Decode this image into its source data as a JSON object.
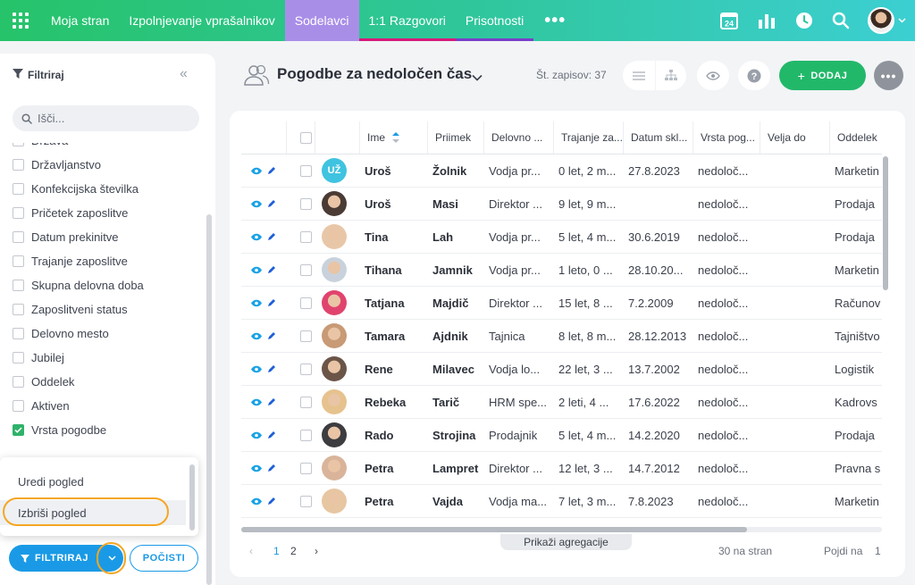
{
  "nav": {
    "items": [
      {
        "label": "Moja stran",
        "underline": ""
      },
      {
        "label": "Izpolnjevanje vprašalnikov",
        "underline": ""
      },
      {
        "label": "Sodelavci",
        "underline": "#a98ee8"
      },
      {
        "label": "1:1 Razgovori",
        "underline": "#d6197a"
      },
      {
        "label": "Prisotnosti",
        "underline": "#7a3fc9"
      }
    ],
    "active_index": 2,
    "more": "•••",
    "calendar_day": "24"
  },
  "sidebar": {
    "title": "Filtriraj",
    "search_placeholder": "Išči...",
    "filters": [
      {
        "label": "Država",
        "checked": false
      },
      {
        "label": "Državljanstvo",
        "checked": false
      },
      {
        "label": "Konfekcijska številka",
        "checked": false
      },
      {
        "label": "Pričetek zaposlitve",
        "checked": false
      },
      {
        "label": "Datum prekinitve",
        "checked": false
      },
      {
        "label": "Trajanje zaposlitve",
        "checked": false
      },
      {
        "label": "Skupna delovna doba",
        "checked": false
      },
      {
        "label": "Zaposlitveni status",
        "checked": false
      },
      {
        "label": "Delovno mesto",
        "checked": false
      },
      {
        "label": "Jubilej",
        "checked": false
      },
      {
        "label": "Oddelek",
        "checked": false
      },
      {
        "label": "Aktiven",
        "checked": false
      },
      {
        "label": "Vrsta pogodbe",
        "checked": true
      }
    ],
    "dropdown": {
      "edit": "Uredi pogled",
      "delete": "Izbriši pogled"
    },
    "filter_button": "FILTRIRAJ",
    "clear_button": "POČISTI"
  },
  "header": {
    "title": "Pogodbe za nedoločen čas",
    "records": "Št. zapisov: 37",
    "add_button": "DODAJ"
  },
  "table": {
    "columns": [
      "Ime",
      "Priimek",
      "Delovno ...",
      "Trajanje za...",
      "Datum skl...",
      "Vrsta pog...",
      "Velja do",
      "Oddelek"
    ],
    "rows": [
      {
        "initials": "UŽ",
        "ime": "Uroš",
        "priimek": "Žolnik",
        "delovno": "Vodja pr...",
        "trajanje": "0 let, 2 m...",
        "datum": "27.8.2023",
        "vrsta": "nedoloč...",
        "velja": "",
        "oddelek": "Marketin"
      },
      {
        "initials": "",
        "ime": "Uroš",
        "priimek": "Masi",
        "delovno": "Direktor ...",
        "trajanje": "9 let, 9 m...",
        "datum": "",
        "vrsta": "nedoloč...",
        "velja": "",
        "oddelek": "Prodaja"
      },
      {
        "initials": "",
        "ime": "Tina",
        "priimek": "Lah",
        "delovno": "Vodja pr...",
        "trajanje": "5 let, 4 m...",
        "datum": "30.6.2019",
        "vrsta": "nedoloč...",
        "velja": "",
        "oddelek": "Prodaja"
      },
      {
        "initials": "",
        "ime": "Tihana",
        "priimek": "Jamnik",
        "delovno": "Vodja pr...",
        "trajanje": "1 leto, 0 ...",
        "datum": "28.10.20...",
        "vrsta": "nedoloč...",
        "velja": "",
        "oddelek": "Marketin"
      },
      {
        "initials": "",
        "ime": "Tatjana",
        "priimek": "Majdič",
        "delovno": "Direktor ...",
        "trajanje": "15 let, 8 ...",
        "datum": "7.2.2009",
        "vrsta": "nedoloč...",
        "velja": "",
        "oddelek": "Računov"
      },
      {
        "initials": "",
        "ime": "Tamara",
        "priimek": "Ajdnik",
        "delovno": "Tajnica",
        "trajanje": "8 let, 8 m...",
        "datum": "28.12.2013",
        "vrsta": "nedoloč...",
        "velja": "",
        "oddelek": "Tajništvo"
      },
      {
        "initials": "",
        "ime": "Rene",
        "priimek": "Milavec",
        "delovno": "Vodja lo...",
        "trajanje": "22 let, 3 ...",
        "datum": "13.7.2002",
        "vrsta": "nedoloč...",
        "velja": "",
        "oddelek": "Logistik"
      },
      {
        "initials": "",
        "ime": "Rebeka",
        "priimek": "Tarič",
        "delovno": "HRM spe...",
        "trajanje": "2 leti, 4 ...",
        "datum": "17.6.2022",
        "vrsta": "nedoloč...",
        "velja": "",
        "oddelek": "Kadrovs"
      },
      {
        "initials": "",
        "ime": "Rado",
        "priimek": "Strojina",
        "delovno": "Prodajnik",
        "trajanje": "5 let, 4 m...",
        "datum": "14.2.2020",
        "vrsta": "nedoloč...",
        "velja": "",
        "oddelek": "Prodaja"
      },
      {
        "initials": "",
        "ime": "Petra",
        "priimek": "Lampret",
        "delovno": "Direktor ...",
        "trajanje": "12 let, 3 ...",
        "datum": "14.7.2012",
        "vrsta": "nedoloč...",
        "velja": "",
        "oddelek": "Pravna s"
      },
      {
        "initials": "",
        "ime": "Petra",
        "priimek": "Vajda",
        "delovno": "Vodja ma...",
        "trajanje": "7 let, 3 m...",
        "datum": "7.8.2023",
        "vrsta": "nedoloč...",
        "velja": "",
        "oddelek": "Marketin"
      }
    ]
  },
  "footer": {
    "aggregation": "Prikaži agregacije",
    "pages": [
      "1",
      "2"
    ],
    "per_page": "30 na stran",
    "go_to_label": "Pojdi na",
    "go_to_value": "1"
  },
  "colors": {
    "primary": "#1a9ae6",
    "add": "#22b86a",
    "active_tab": "#a98ee8",
    "highlight_ring": "#f5a623"
  }
}
